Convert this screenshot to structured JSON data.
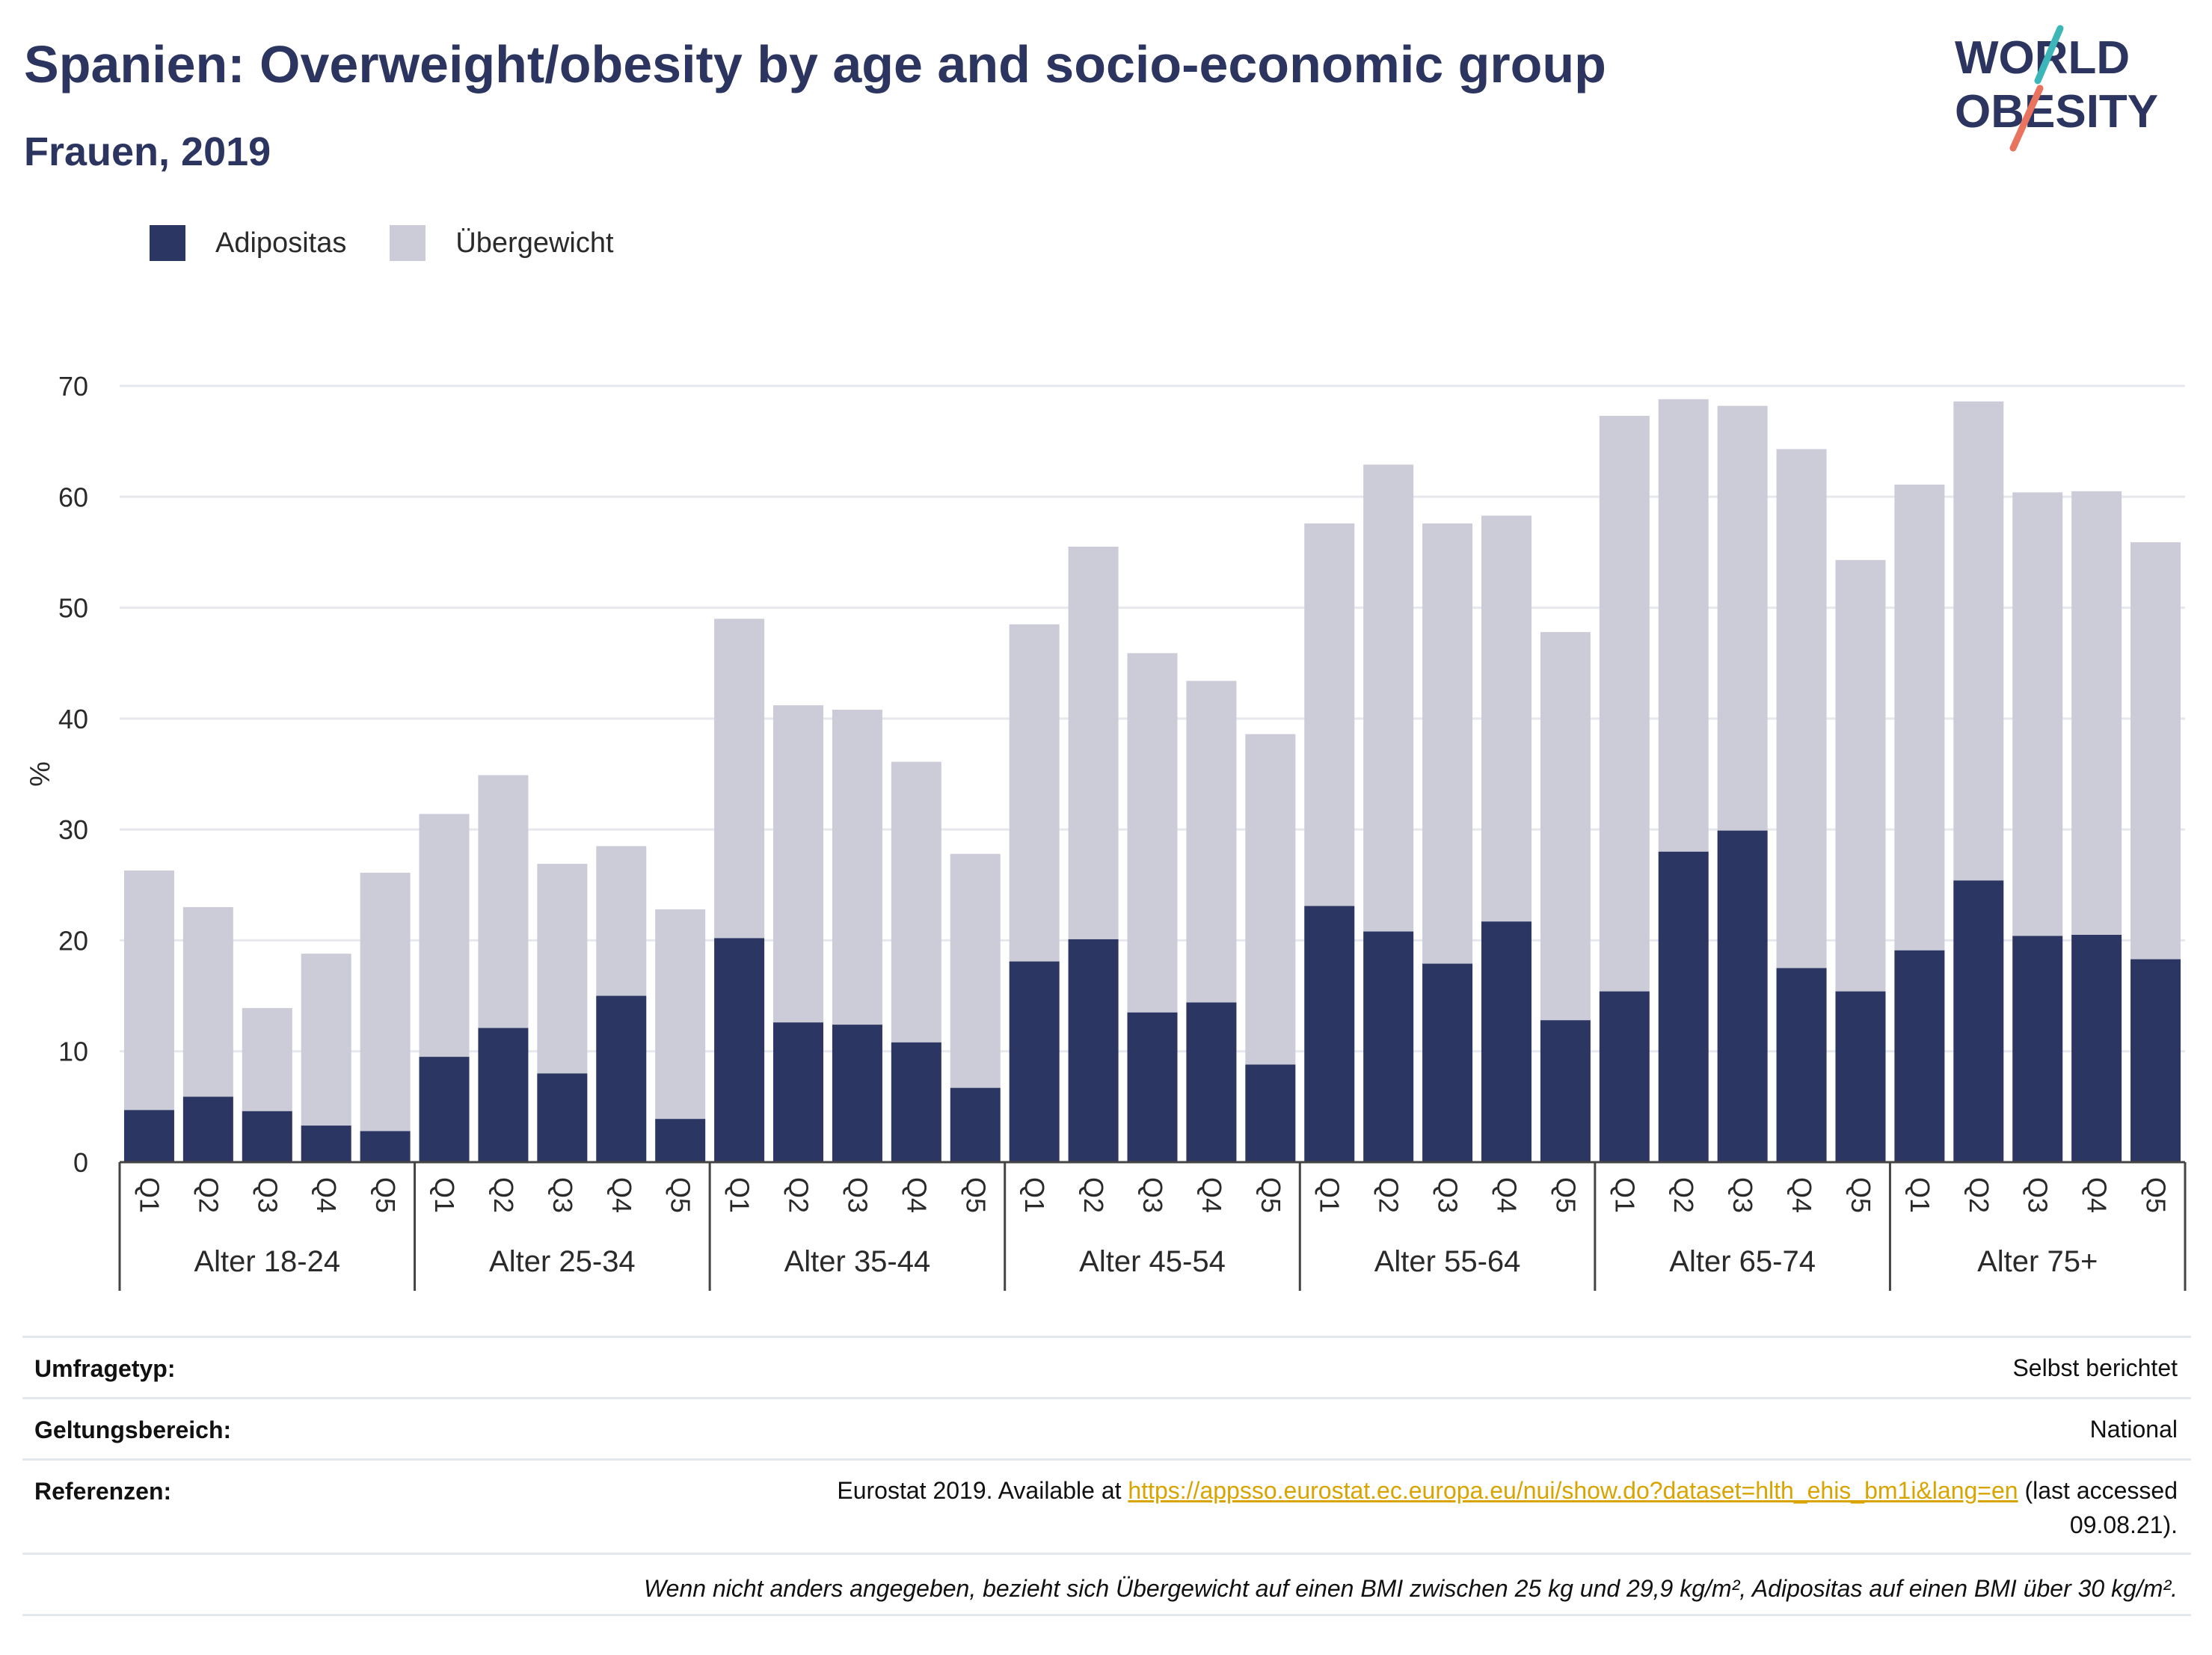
{
  "header": {
    "title": "Spanien: Overweight/obesity by age and socio-economic group",
    "subtitle": "Frauen, 2019"
  },
  "logo": {
    "line1": "WORLD",
    "line2": "OBESITY"
  },
  "legend": {
    "items": [
      {
        "label": "Adipositas",
        "color": "#2b3662"
      },
      {
        "label": "Übergewicht",
        "color": "#cbccd8"
      }
    ]
  },
  "chart_data": {
    "type": "bar",
    "stacked": true,
    "ylabel": "%",
    "ylim": [
      0,
      70
    ],
    "yticks": [
      0,
      10,
      20,
      30,
      40,
      50,
      60,
      70
    ],
    "grid": true,
    "legend_position": "top-left",
    "groups": [
      {
        "label": "Alter 18-24",
        "categories": [
          "Q1",
          "Q2",
          "Q3",
          "Q4",
          "Q5"
        ],
        "adipositas": [
          4.7,
          5.9,
          4.6,
          3.3,
          2.8
        ],
        "total": [
          26.3,
          23.0,
          13.9,
          18.8,
          26.1
        ]
      },
      {
        "label": "Alter 25-34",
        "categories": [
          "Q1",
          "Q2",
          "Q3",
          "Q4",
          "Q5"
        ],
        "adipositas": [
          9.5,
          12.1,
          8.0,
          15.0,
          3.9
        ],
        "total": [
          31.4,
          34.9,
          26.9,
          28.5,
          22.8
        ]
      },
      {
        "label": "Alter 35-44",
        "categories": [
          "Q1",
          "Q2",
          "Q3",
          "Q4",
          "Q5"
        ],
        "adipositas": [
          20.2,
          12.6,
          12.4,
          10.8,
          6.7
        ],
        "total": [
          49.0,
          41.2,
          40.8,
          36.1,
          27.8
        ]
      },
      {
        "label": "Alter 45-54",
        "categories": [
          "Q1",
          "Q2",
          "Q3",
          "Q4",
          "Q5"
        ],
        "adipositas": [
          18.1,
          20.1,
          13.5,
          14.4,
          8.8
        ],
        "total": [
          48.5,
          55.5,
          45.9,
          43.4,
          38.6
        ]
      },
      {
        "label": "Alter 55-64",
        "categories": [
          "Q1",
          "Q2",
          "Q3",
          "Q4",
          "Q5"
        ],
        "adipositas": [
          23.1,
          20.8,
          17.9,
          21.7,
          12.8
        ],
        "total": [
          57.6,
          62.9,
          57.6,
          58.3,
          47.8
        ]
      },
      {
        "label": "Alter 65-74",
        "categories": [
          "Q1",
          "Q2",
          "Q3",
          "Q4",
          "Q5"
        ],
        "adipositas": [
          15.4,
          28.0,
          29.9,
          17.5,
          15.4
        ],
        "total": [
          67.3,
          68.8,
          68.2,
          64.3,
          54.3
        ]
      },
      {
        "label": "Alter 75+",
        "categories": [
          "Q1",
          "Q2",
          "Q3",
          "Q4",
          "Q5"
        ],
        "adipositas": [
          19.1,
          25.4,
          20.4,
          20.5,
          18.3
        ],
        "total": [
          61.1,
          68.6,
          60.4,
          60.5,
          55.9
        ]
      }
    ]
  },
  "meta": {
    "survey_type_label": "Umfragetyp:",
    "survey_type_value": "Selbst berichtet",
    "scope_label": "Geltungsbereich:",
    "scope_value": "National",
    "references_label": "Referenzen:",
    "references_prefix": "Eurostat 2019. Available at ",
    "references_link": "https://appsso.eurostat.ec.europa.eu/nui/show.do?dataset=hlth_ehis_bm1i&lang=en",
    "references_suffix": " (last accessed",
    "references_date": "09.08.21).",
    "footnote": "Wenn nicht anders angegeben, bezieht sich Übergewicht auf einen BMI zwischen 25 kg und 29,9 kg/m², Adipositas auf einen BMI über 30 kg/m²."
  }
}
